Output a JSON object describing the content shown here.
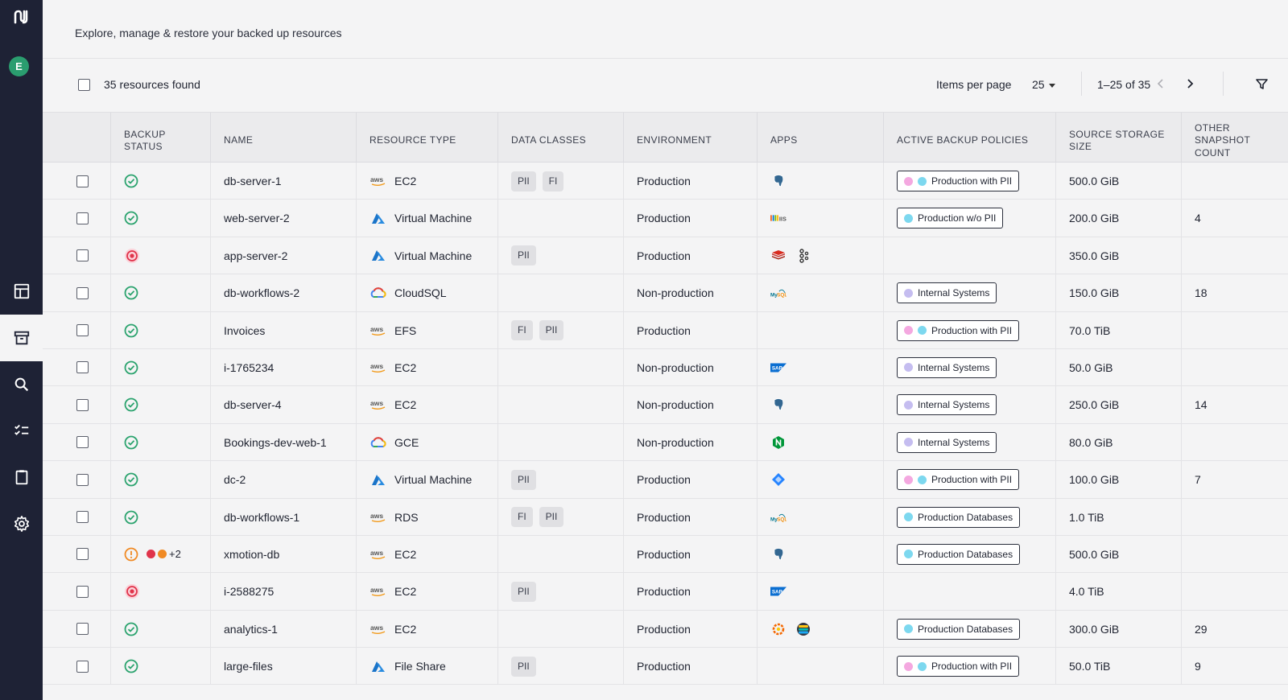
{
  "app": {
    "logo": "N",
    "avatar": "E"
  },
  "header": {
    "subtitle": "Explore, manage & restore your backed up resources"
  },
  "toolbar": {
    "count": "35 resources found",
    "items_per_page_label": "Items per page",
    "items_per_page_value": "25",
    "range": "1–25 of 35"
  },
  "columns": {
    "backup_status": "BACKUP STATUS",
    "name": "NAME",
    "resource_type": "RESOURCE TYPE",
    "data_classes": "DATA CLASSES",
    "environment": "ENVIRONMENT",
    "apps": "APPS",
    "active_backup_policies": "ACTIVE BACKUP POLICIES",
    "source_storage_size": "SOURCE STORAGE SIZE",
    "other_snapshot_count": "OTHER SNAPSHOT COUNT"
  },
  "colors": {
    "sidebar": "#1e2235",
    "ok": "#2ba36e",
    "error": "#e0344b",
    "warn": "#f08a24",
    "pink_dot": "#f4a8e0",
    "cyan_dot": "#7dd8ef",
    "lavender_dot": "#c5bdf0"
  },
  "rows": [
    {
      "status": "ok",
      "name": "db-server-1",
      "rt_icon": "aws",
      "rt": "EC2",
      "classes": [
        "PII",
        "FI"
      ],
      "env": "Production",
      "apps": [
        "postgres"
      ],
      "policy": "Production with PII",
      "dots": [
        "pink",
        "cyan"
      ],
      "size": "500.0 GiB",
      "snap": ""
    },
    {
      "status": "ok",
      "name": "web-server-2",
      "rt_icon": "azure",
      "rt": "Virtual Machine",
      "classes": [],
      "env": "Production",
      "apps": [
        "iis"
      ],
      "policy": "Production w/o PII",
      "dots": [
        "cyan"
      ],
      "size": "200.0 GiB",
      "snap": "4"
    },
    {
      "status": "error",
      "name": "app-server-2",
      "rt_icon": "azure",
      "rt": "Virtual Machine",
      "classes": [
        "PII"
      ],
      "env": "Production",
      "apps": [
        "redis",
        "kafka"
      ],
      "policy": "",
      "dots": [],
      "size": "350.0 GiB",
      "snap": ""
    },
    {
      "status": "ok",
      "name": "db-workflows-2",
      "rt_icon": "gcp",
      "rt": "CloudSQL",
      "classes": [],
      "env": "Non-production",
      "apps": [
        "mysql"
      ],
      "policy": "Internal Systems",
      "dots": [
        "lavender"
      ],
      "size": "150.0 GiB",
      "snap": "18"
    },
    {
      "status": "ok",
      "name": "Invoices",
      "rt_icon": "aws",
      "rt": "EFS",
      "classes": [
        "FI",
        "PII"
      ],
      "env": "Production",
      "apps": [],
      "policy": "Production with PII",
      "dots": [
        "pink",
        "cyan"
      ],
      "size": "70.0 TiB",
      "snap": ""
    },
    {
      "status": "ok",
      "name": "i-1765234",
      "rt_icon": "aws",
      "rt": "EC2",
      "classes": [],
      "env": "Non-production",
      "apps": [
        "sap"
      ],
      "policy": "Internal Systems",
      "dots": [
        "lavender"
      ],
      "size": "50.0 GiB",
      "snap": ""
    },
    {
      "status": "ok",
      "name": "db-server-4",
      "rt_icon": "aws",
      "rt": "EC2",
      "classes": [],
      "env": "Non-production",
      "apps": [
        "postgres"
      ],
      "policy": "Internal Systems",
      "dots": [
        "lavender"
      ],
      "size": "250.0 GiB",
      "snap": "14"
    },
    {
      "status": "ok",
      "name": "Bookings-dev-web-1",
      "rt_icon": "gcp",
      "rt": "GCE",
      "classes": [],
      "env": "Non-production",
      "apps": [
        "nginx"
      ],
      "policy": "Internal Systems",
      "dots": [
        "lavender"
      ],
      "size": "80.0 GiB",
      "snap": ""
    },
    {
      "status": "ok",
      "name": "dc-2",
      "rt_icon": "azure",
      "rt": "Virtual Machine",
      "classes": [
        "PII"
      ],
      "env": "Production",
      "apps": [
        "confluence"
      ],
      "policy": "Production with PII",
      "dots": [
        "pink",
        "cyan"
      ],
      "size": "100.0 GiB",
      "snap": "7"
    },
    {
      "status": "ok",
      "name": "db-workflows-1",
      "rt_icon": "aws",
      "rt": "RDS",
      "classes": [
        "FI",
        "PII"
      ],
      "env": "Production",
      "apps": [
        "mysql"
      ],
      "policy": "Production Databases",
      "dots": [
        "cyan"
      ],
      "size": "1.0 TiB",
      "snap": ""
    },
    {
      "status": "warn",
      "name": "xmotion-db",
      "rt_icon": "aws",
      "rt": "EC2",
      "classes": [],
      "env": "Production",
      "apps": [
        "postgres"
      ],
      "policy": "Production Databases",
      "dots": [
        "cyan"
      ],
      "size": "500.0 GiB",
      "snap": "",
      "extra": "+2"
    },
    {
      "status": "error",
      "name": "i-2588275",
      "rt_icon": "aws",
      "rt": "EC2",
      "classes": [
        "PII"
      ],
      "env": "Production",
      "apps": [
        "sap"
      ],
      "policy": "",
      "dots": [],
      "size": "4.0 TiB",
      "snap": ""
    },
    {
      "status": "ok",
      "name": "analytics-1",
      "rt_icon": "aws",
      "rt": "EC2",
      "classes": [],
      "env": "Production",
      "apps": [
        "grafana",
        "elastic"
      ],
      "policy": "Production Databases",
      "dots": [
        "cyan"
      ],
      "size": "300.0 GiB",
      "snap": "29"
    },
    {
      "status": "ok",
      "name": "large-files",
      "rt_icon": "azure",
      "rt": "File Share",
      "classes": [
        "PII"
      ],
      "env": "Production",
      "apps": [],
      "policy": "Production with PII",
      "dots": [
        "pink",
        "cyan"
      ],
      "size": "50.0 TiB",
      "snap": "9"
    }
  ]
}
